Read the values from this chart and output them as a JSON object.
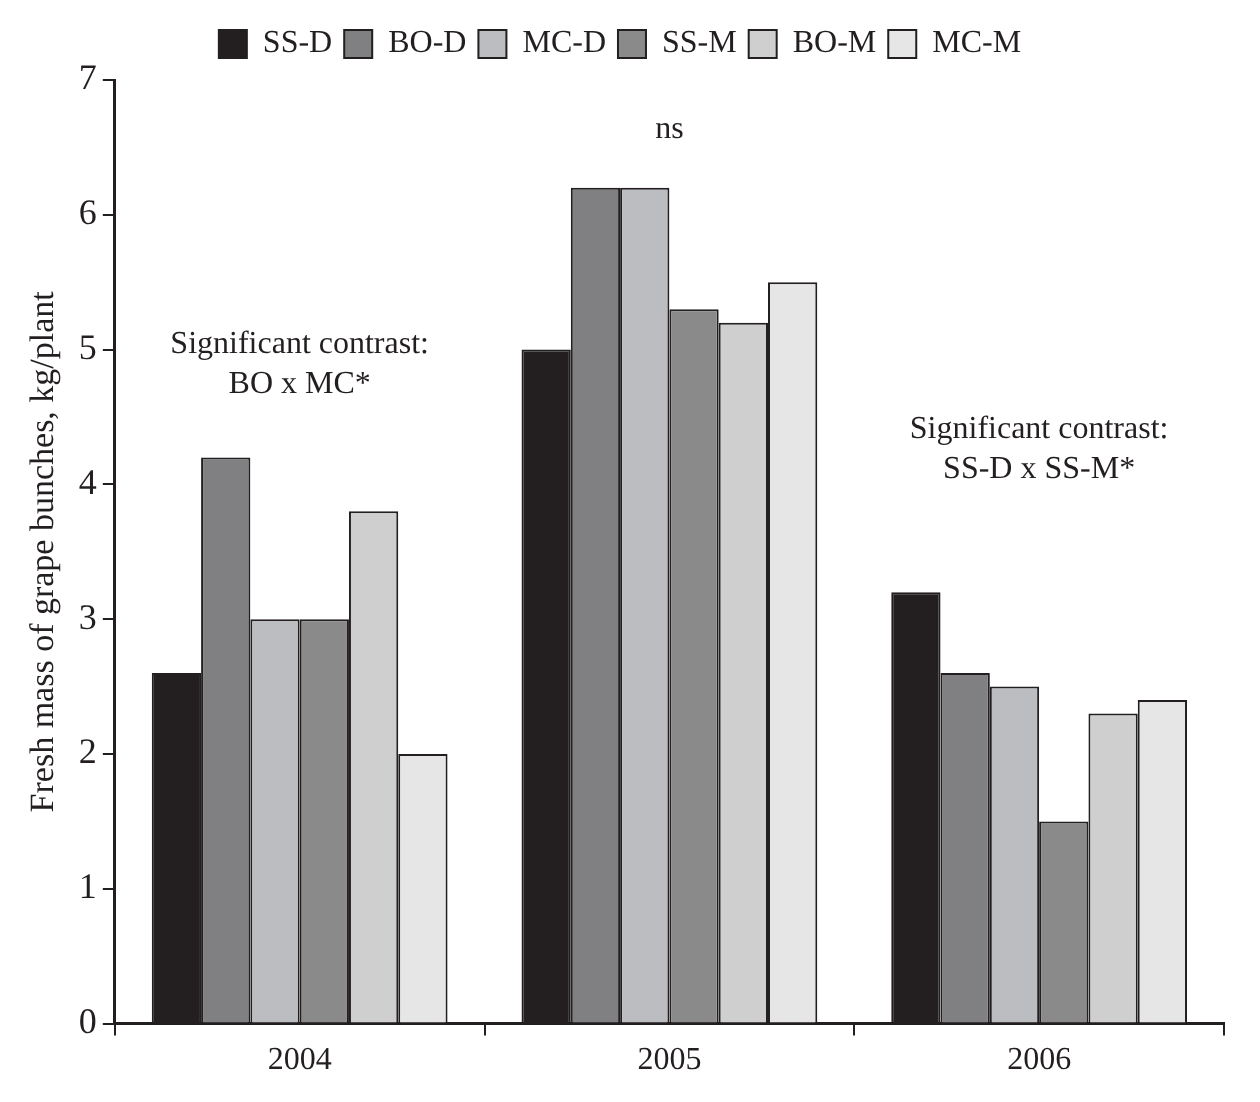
{
  "chart_data": {
    "type": "bar",
    "ylabel": "Fresh mass of grape bunches, kg/plant",
    "categories": [
      "2004",
      "2005",
      "2006"
    ],
    "series": [
      {
        "name": "SS-D",
        "color": "#231f20",
        "values": [
          2.6,
          5.0,
          3.2
        ]
      },
      {
        "name": "BO-D",
        "color": "#808083",
        "values": [
          4.2,
          6.2,
          2.6
        ]
      },
      {
        "name": "MC-D",
        "color": "#bcbdc0",
        "values": [
          3.0,
          6.2,
          2.5
        ]
      },
      {
        "name": "SS-M",
        "color": "#8a8a8a",
        "values": [
          3.0,
          5.3,
          1.5
        ]
      },
      {
        "name": "BO-M",
        "color": "#cfcfcf",
        "values": [
          3.8,
          5.2,
          2.3
        ]
      },
      {
        "name": "MC-M",
        "color": "#e6e6e6",
        "values": [
          2.0,
          5.5,
          2.4
        ]
      }
    ],
    "ylim": [
      0,
      7
    ],
    "yticks": [
      0,
      1,
      2,
      3,
      4,
      5,
      6,
      7
    ],
    "grid": false,
    "legend": "top",
    "annotations": [
      "Significant contrast: BO x MC*",
      "ns",
      "Significant contrast: SS-D x SS-M*"
    ]
  }
}
